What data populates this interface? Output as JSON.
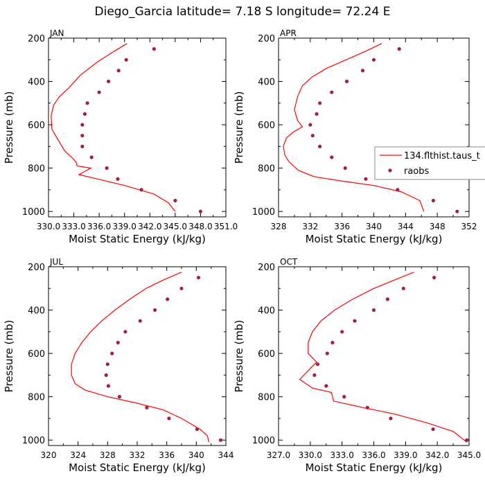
{
  "title": "Diego_Garcia  latitude= 7.18 S longitude= 72.24 E",
  "ylabel": "Pressure (mb)",
  "xlabel": "Moist Static Energy (kJ/kg)",
  "colors": {
    "model_line": "#ff0000",
    "obs_marker": "#a0204a",
    "axes": "#000000"
  },
  "legend": {
    "model": "134.flthist.taus_t",
    "obs": "raobs",
    "placement": "right-middle"
  },
  "chart_data": [
    {
      "type": "line",
      "panel": "JAN",
      "xlim": [
        330.0,
        351.0
      ],
      "ylim": [
        1025,
        200
      ],
      "xticks": [
        330.0,
        333.0,
        336.0,
        339.0,
        342.0,
        345.0,
        348.0,
        351.0
      ],
      "xtick_labels": [
        "330.0",
        "333.0",
        "336.0",
        "339.0",
        "342.0",
        "345.0",
        "348.0",
        "351.0"
      ],
      "yticks": [
        200,
        400,
        600,
        800,
        1000
      ],
      "series": [
        {
          "name": "134.flthist.taus_t",
          "kind": "line",
          "x": [
            339.3,
            337.8,
            335.8,
            333.8,
            332.4,
            331.3,
            330.6,
            330.3,
            330.4,
            331.0,
            331.9,
            333.0,
            333.3,
            333.4,
            335.0,
            333.6,
            335.8,
            339.0,
            342.5,
            344.2,
            345.0
          ],
          "y": [
            225,
            260,
            310,
            370,
            430,
            470,
            510,
            560,
            620,
            660,
            720,
            760,
            775,
            790,
            800,
            830,
            850,
            880,
            920,
            960,
            1000
          ]
        },
        {
          "name": "raobs",
          "kind": "scatter",
          "x": [
            342.5,
            339.2,
            338.3,
            337.1,
            336.0,
            334.6,
            334.3,
            334.0,
            334.0,
            334.0,
            335.1,
            336.9,
            338.2,
            341.0,
            345.0,
            348.0
          ],
          "y": [
            250,
            300,
            350,
            400,
            450,
            500,
            550,
            600,
            650,
            700,
            750,
            800,
            850,
            900,
            950,
            1000
          ]
        }
      ]
    },
    {
      "type": "line",
      "panel": "APR",
      "xlim": [
        328,
        352
      ],
      "ylim": [
        1025,
        200
      ],
      "xticks": [
        328,
        332,
        336,
        340,
        344,
        348,
        352
      ],
      "xtick_labels": [
        "328",
        "332",
        "336",
        "340",
        "344",
        "348",
        "352"
      ],
      "yticks": [
        200,
        400,
        600,
        800,
        1000
      ],
      "series": [
        {
          "name": "134.flthist.taus_t",
          "kind": "line",
          "x": [
            341.0,
            339.0,
            336.5,
            334.0,
            332.2,
            331.0,
            330.4,
            330.0,
            330.4,
            331.0,
            330.0,
            329.0,
            328.6,
            328.8,
            329.3,
            330.5,
            332.5,
            336.0,
            340.0,
            343.5,
            345.8,
            346.3
          ],
          "y": [
            225,
            260,
            300,
            340,
            380,
            420,
            470,
            530,
            580,
            610,
            630,
            660,
            700,
            740,
            770,
            810,
            840,
            860,
            880,
            910,
            950,
            1000
          ]
        },
        {
          "name": "raobs",
          "kind": "scatter",
          "x": [
            343.2,
            340.0,
            338.6,
            336.6,
            334.7,
            333.2,
            332.8,
            332.0,
            332.3,
            333.2,
            334.7,
            336.4,
            339.0,
            343.0,
            347.5,
            350.5
          ],
          "y": [
            250,
            300,
            350,
            400,
            450,
            500,
            550,
            600,
            650,
            700,
            750,
            800,
            850,
            900,
            950,
            1000
          ]
        }
      ]
    },
    {
      "type": "line",
      "panel": "JUL",
      "xlim": [
        320,
        344
      ],
      "ylim": [
        1025,
        200
      ],
      "xticks": [
        320,
        324,
        328,
        332,
        336,
        340,
        344
      ],
      "xtick_labels": [
        "320",
        "324",
        "328",
        "332",
        "336",
        "340",
        "344"
      ],
      "yticks": [
        200,
        400,
        600,
        800,
        1000
      ],
      "series": [
        {
          "name": "134.flthist.taus_t",
          "kind": "line",
          "x": [
            338.0,
            335.6,
            333.2,
            331.0,
            329.0,
            327.2,
            325.7,
            324.5,
            323.6,
            323.1,
            323.1,
            323.6,
            325.0,
            328.0,
            332.0,
            335.5,
            338.0,
            340.5,
            341.5,
            341.7
          ],
          "y": [
            225,
            260,
            300,
            350,
            400,
            450,
            500,
            550,
            600,
            650,
            700,
            740,
            770,
            800,
            830,
            860,
            900,
            950,
            980,
            1010
          ]
        },
        {
          "name": "raobs",
          "kind": "scatter",
          "x": [
            340.3,
            338.0,
            336.1,
            334.4,
            332.4,
            330.4,
            329.4,
            328.6,
            328.0,
            327.8,
            328.1,
            329.6,
            333.3,
            336.3,
            340.1,
            343.3
          ],
          "y": [
            250,
            300,
            350,
            400,
            450,
            500,
            550,
            600,
            650,
            700,
            750,
            800,
            850,
            900,
            950,
            1000
          ]
        }
      ]
    },
    {
      "type": "line",
      "panel": "OCT",
      "xlim": [
        327.0,
        345.0
      ],
      "ylim": [
        1025,
        200
      ],
      "xticks": [
        327.0,
        330.0,
        333.0,
        336.0,
        339.0,
        342.0,
        345.0
      ],
      "xtick_labels": [
        "327.0",
        "330.0",
        "333.0",
        "336.0",
        "339.0",
        "342.0",
        "345.0"
      ],
      "yticks": [
        200,
        400,
        600,
        800,
        1000
      ],
      "series": [
        {
          "name": "134.flthist.taus_t",
          "kind": "line",
          "x": [
            339.8,
            338.0,
            336.0,
            334.0,
            332.3,
            331.0,
            330.2,
            329.8,
            329.8,
            330.6,
            329.8,
            329.0,
            330.2,
            332.0,
            332.2,
            335.0,
            338.0,
            341.0,
            343.5,
            344.8
          ],
          "y": [
            225,
            260,
            300,
            350,
            400,
            450,
            500,
            550,
            600,
            640,
            680,
            720,
            760,
            780,
            820,
            850,
            880,
            920,
            960,
            1010
          ]
        },
        {
          "name": "raobs",
          "kind": "scatter",
          "x": [
            341.7,
            338.8,
            337.3,
            336.0,
            334.2,
            333.0,
            332.1,
            331.6,
            330.7,
            330.4,
            331.5,
            333.2,
            335.4,
            337.6,
            341.6,
            344.8
          ],
          "y": [
            250,
            300,
            350,
            400,
            450,
            500,
            550,
            600,
            650,
            700,
            750,
            800,
            850,
            900,
            950,
            1000
          ]
        }
      ]
    }
  ]
}
